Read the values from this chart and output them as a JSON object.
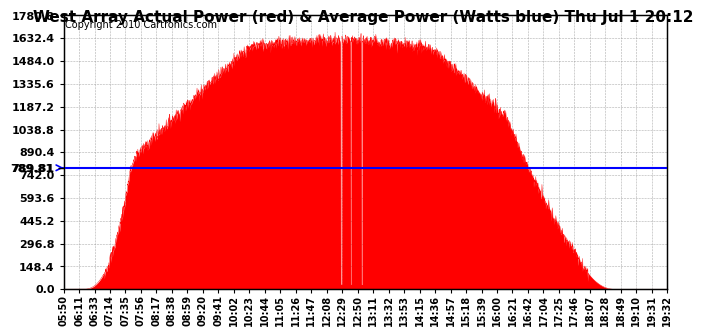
{
  "title": "West Array Actual Power (red) & Average Power (Watts blue) Thu Jul 1 20:12",
  "copyright": "Copyright 2010 Cartronics.com",
  "avg_power": 789.81,
  "ymax": 1780.8,
  "ymin": 0.0,
  "yticks": [
    0.0,
    148.4,
    296.8,
    445.2,
    593.6,
    742.0,
    890.4,
    1038.8,
    1187.2,
    1335.6,
    1484.0,
    1632.4,
    1780.8
  ],
  "avg_ytick": 789.81,
  "xtick_labels": [
    "05:50",
    "06:11",
    "06:33",
    "07:14",
    "07:35",
    "07:56",
    "08:17",
    "08:38",
    "08:59",
    "09:20",
    "09:41",
    "10:02",
    "10:23",
    "10:44",
    "11:05",
    "11:26",
    "11:47",
    "12:08",
    "12:29",
    "12:50",
    "13:11",
    "13:32",
    "13:53",
    "14:15",
    "14:36",
    "14:57",
    "15:18",
    "15:39",
    "16:00",
    "16:21",
    "16:42",
    "17:04",
    "17:25",
    "17:46",
    "18:07",
    "18:28",
    "18:49",
    "19:10",
    "19:31",
    "19:32"
  ],
  "fill_color": "#FF0000",
  "line_color": "#0000FF",
  "bg_color": "#FFFFFF",
  "grid_color": "#999999",
  "title_fontsize": 11,
  "copyright_fontsize": 7,
  "tick_fontsize": 7,
  "ytick_fontsize": 8
}
